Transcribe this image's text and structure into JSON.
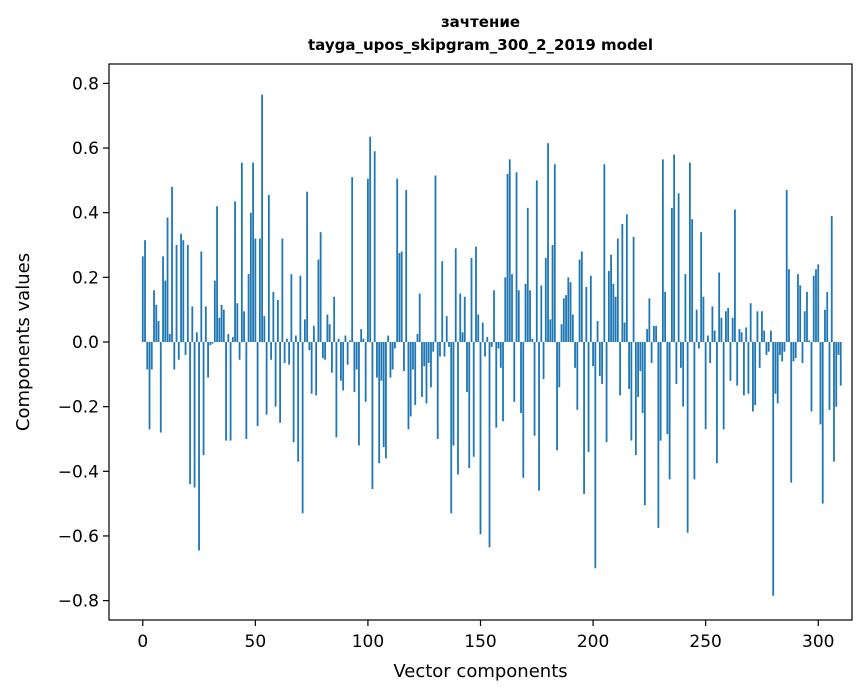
{
  "chart_data": {
    "type": "bar",
    "title": "зачтение",
    "subtitle": "tayga_upos_skipgram_300_2_2019 model",
    "xlabel": "Vector components",
    "ylabel": "Components values",
    "xlim": [
      -15,
      315
    ],
    "ylim": [
      -0.86,
      0.86
    ],
    "xticks": [
      0,
      50,
      100,
      150,
      200,
      250,
      300
    ],
    "yticks": [
      -0.8,
      -0.6,
      -0.4,
      -0.2,
      0.0,
      0.2,
      0.4,
      0.6,
      0.8
    ],
    "xtick_labels": [
      "0",
      "50",
      "100",
      "150",
      "200",
      "250",
      "300"
    ],
    "ytick_labels": [
      "−0.8",
      "−0.6",
      "−0.4",
      "−0.2",
      "0.0",
      "0.2",
      "0.4",
      "0.6",
      "0.8"
    ],
    "bar_color": "#1f77b4",
    "values": [
      0.265,
      0.315,
      -0.085,
      -0.27,
      -0.085,
      0.16,
      0.115,
      0.065,
      -0.28,
      0.265,
      0.19,
      0.385,
      0.025,
      0.48,
      -0.085,
      0.3,
      -0.055,
      0.335,
      0.315,
      -0.04,
      0.3,
      -0.44,
      0.11,
      -0.45,
      0.03,
      -0.645,
      0.28,
      -0.35,
      0.11,
      -0.11,
      -0.01,
      -0.005,
      0.19,
      0.42,
      0.075,
      0.115,
      0.1,
      -0.305,
      0.025,
      -0.305,
      0.015,
      0.435,
      0.12,
      -0.055,
      0.555,
      0.095,
      -0.3,
      0.21,
      0.4,
      0.555,
      0.32,
      -0.26,
      0.32,
      0.765,
      0.08,
      -0.225,
      0.455,
      -0.055,
      0.155,
      -0.2,
      0.13,
      -0.25,
      0.32,
      -0.065,
      0.01,
      -0.07,
      0.21,
      -0.31,
      0.02,
      -0.37,
      0.205,
      -0.53,
      0.07,
      0.465,
      -0.025,
      -0.16,
      0.05,
      -0.165,
      0.255,
      0.34,
      -0.05,
      -0.055,
      0.085,
      0.055,
      -0.095,
      0.14,
      -0.295,
      0.01,
      -0.12,
      -0.15,
      0.02,
      -0.07,
      0.005,
      0.51,
      -0.155,
      -0.085,
      -0.32,
      0.04,
      0.01,
      -0.185,
      0.505,
      0.635,
      -0.455,
      0.59,
      -0.11,
      -0.375,
      -0.12,
      -0.325,
      -0.36,
      0.02,
      -0.11,
      -0.085,
      -0.02,
      0.505,
      0.275,
      0.28,
      -0.09,
      0.47,
      -0.27,
      -0.23,
      -0.085,
      -0.195,
      0.025,
      0.15,
      -0.17,
      -0.075,
      -0.19,
      -0.065,
      -0.14,
      -0.03,
      0.515,
      -0.3,
      -0.045,
      0.25,
      -0.045,
      0.08,
      -0.015,
      -0.53,
      -0.32,
      0.29,
      -0.41,
      0.15,
      0.03,
      0.14,
      -0.155,
      -0.39,
      0.26,
      -0.355,
      0.295,
      0.085,
      -0.595,
      0.06,
      -0.045,
      0.015,
      -0.635,
      -0.015,
      0.16,
      -0.265,
      -0.02,
      -0.08,
      -0.245,
      0.2,
      0.52,
      0.565,
      0.21,
      -0.185,
      0.525,
      0.16,
      -0.22,
      -0.42,
      0.18,
      0.415,
      0.16,
      0.01,
      -0.29,
      0.5,
      -0.46,
      0.175,
      -0.115,
      0.26,
      0.615,
      0.07,
      0.3,
      0.55,
      -0.335,
      -0.14,
      0.055,
      0.135,
      0.145,
      0.2,
      0.185,
      0.085,
      -0.08,
      -0.21,
      0.255,
      0.28,
      -0.47,
      0.17,
      -0.34,
      0.205,
      -0.075,
      -0.7,
      0.065,
      -0.105,
      -0.13,
      0.55,
      -0.31,
      0.22,
      0.27,
      0.18,
      0.14,
      0.32,
      -0.165,
      0.365,
      0.06,
      0.395,
      -0.145,
      -0.305,
      0.325,
      -0.35,
      -0.17,
      -0.09,
      -0.22,
      -0.505,
      0.04,
      0.135,
      -0.065,
      0.05,
      0.05,
      -0.575,
      -0.305,
      0.565,
      0.155,
      -0.285,
      -0.425,
      0.415,
      0.58,
      -0.13,
      0.46,
      -0.08,
      -0.2,
      0.21,
      -0.59,
      0.555,
      0.38,
      -0.425,
      0.1,
      -0.02,
      0.34,
      0.14,
      -0.27,
      0.02,
      -0.065,
      0.11,
      0.035,
      -0.375,
      0.215,
      0.075,
      -0.27,
      0.095,
      0.105,
      -0.12,
      0.075,
      0.41,
      -0.135,
      0.04,
      0.03,
      -0.165,
      0.045,
      -0.16,
      0.12,
      -0.215,
      -0.195,
      0.095,
      -0.08,
      0.095,
      0.035,
      -0.04,
      -0.03,
      0.035,
      -0.785,
      -0.16,
      -0.19,
      -0.04,
      -0.06,
      -0.03,
      0.47,
      0.225,
      -0.435,
      -0.06,
      -0.05,
      0.21,
      0.175,
      -0.065,
      0.095,
      0.155,
      0.005,
      -0.215,
      0.205,
      0.225,
      0.24,
      -0.255,
      -0.5,
      0.1,
      0.155,
      -0.21,
      0.39,
      -0.37,
      -0.2,
      -0.04,
      -0.135
    ]
  }
}
